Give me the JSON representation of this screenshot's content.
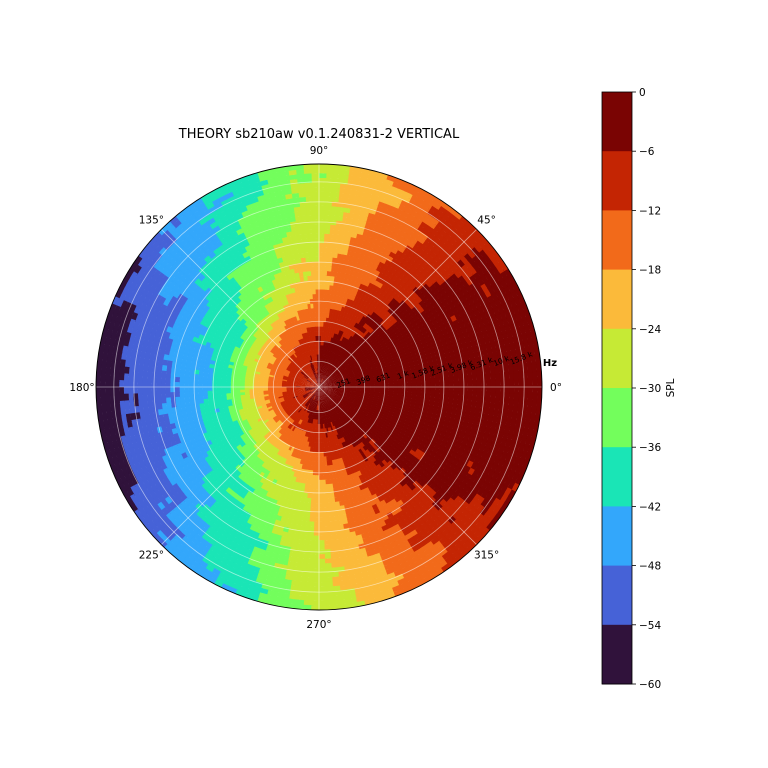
{
  "chart_data": {
    "type": "polar-contour",
    "title": "THEORY sb210aw v0.1.240831-2 VERTICAL",
    "angular_ticks": [
      "0°",
      "45°",
      "90°",
      "135°",
      "180°",
      "225°",
      "270°",
      "315°"
    ],
    "angular_tick_degrees": [
      0,
      45,
      90,
      135,
      180,
      225,
      270,
      315
    ],
    "radial_axis_unit": "Hz",
    "radial_tick_labels": [
      "251",
      "398",
      "631",
      "1 k",
      "1.58 k",
      "2.51 k",
      "3.98 k",
      "6.31 k",
      "10 k",
      "15.8 k"
    ],
    "radial_tick_fractions": [
      0.115,
      0.205,
      0.295,
      0.385,
      0.475,
      0.56,
      0.65,
      0.74,
      0.83,
      0.92
    ],
    "colorbar": {
      "label": "SPL",
      "ticks": [
        "0",
        "−6",
        "−12",
        "−18",
        "−24",
        "−30",
        "−36",
        "−42",
        "−48",
        "−54",
        "−60"
      ],
      "range": [
        -60,
        0
      ],
      "levels": [
        {
          "min": -6,
          "max": 0,
          "color": "#7a0403"
        },
        {
          "min": -12,
          "max": -6,
          "color": "#c42503"
        },
        {
          "min": -18,
          "max": -12,
          "color": "#f26a1a"
        },
        {
          "min": -24,
          "max": -18,
          "color": "#fbba3a"
        },
        {
          "min": -30,
          "max": -24,
          "color": "#c6ea35"
        },
        {
          "min": -36,
          "max": -30,
          "color": "#73fe5c"
        },
        {
          "min": -42,
          "max": -36,
          "color": "#1ae5b6"
        },
        {
          "min": -48,
          "max": -42,
          "color": "#33a7fb"
        },
        {
          "min": -54,
          "max": -48,
          "color": "#4662d7"
        },
        {
          "min": -60,
          "max": -54,
          "color": "#30123b"
        }
      ]
    },
    "grid": true
  }
}
